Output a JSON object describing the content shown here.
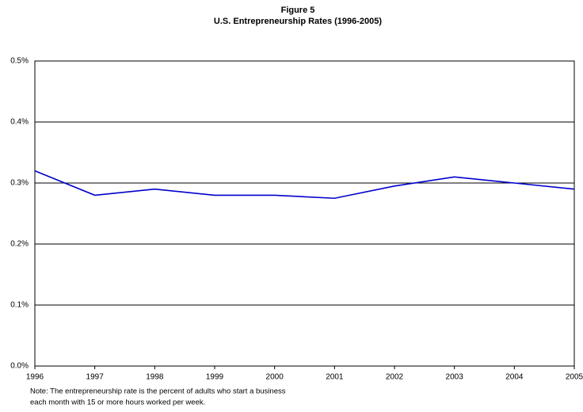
{
  "chart_data": {
    "type": "line",
    "title": "Figure 5",
    "subtitle": "U.S. Entrepreneurship Rates (1996-2005)",
    "x": [
      1996,
      1997,
      1998,
      1999,
      2000,
      2001,
      2002,
      2003,
      2004,
      2005
    ],
    "series": [
      {
        "color": "#0000cc",
        "values": [
          0.32,
          0.28,
          0.29,
          0.28,
          0.28,
          0.275,
          0.295,
          0.31,
          0.3,
          0.29
        ]
      }
    ],
    "xlim": [
      1996,
      2005
    ],
    "xticks": [
      1996,
      1997,
      1998,
      1999,
      2000,
      2001,
      2002,
      2003,
      2004,
      2005
    ],
    "ylim": [
      0,
      0.5
    ],
    "yticks": [
      {
        "value": 0,
        "label": "0.0%"
      },
      {
        "value": 0.1,
        "label": "0.1%"
      },
      {
        "value": 0.2,
        "label": "0.2%"
      },
      {
        "value": 0.3,
        "label": "0.3%"
      },
      {
        "value": 0.4,
        "label": "0.4%"
      },
      {
        "value": 0.5,
        "label": "0.5%"
      }
    ],
    "grid": true,
    "notes": [
      "Note: The entrepreneurship rate is the percent of adults who start a business",
      "each month with 15 or more hours worked per week."
    ]
  }
}
